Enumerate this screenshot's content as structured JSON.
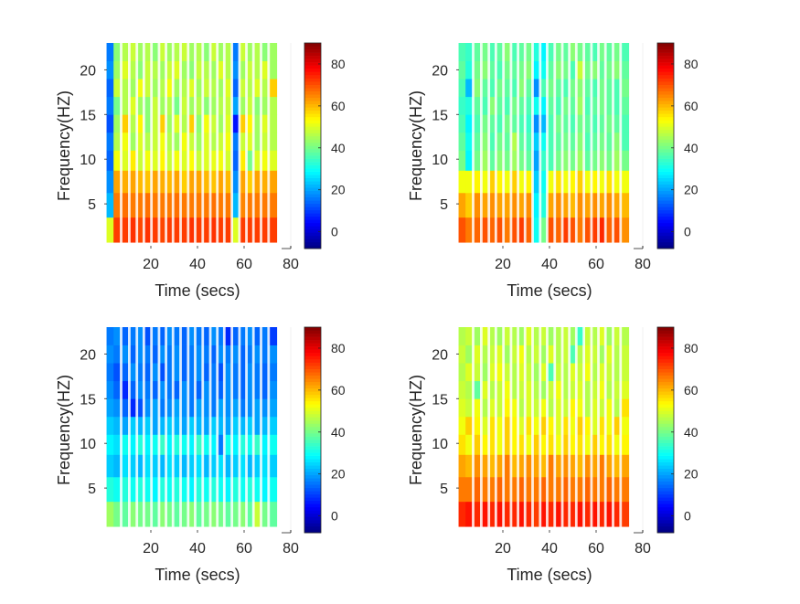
{
  "chart_data": [
    {
      "type": "heatmap",
      "panel": "top-left",
      "xlabel": "Time (secs)",
      "ylabel": "Frequency(HZ)",
      "xticks": [
        20,
        40,
        60,
        80
      ],
      "yticks": [
        5,
        10,
        15,
        20
      ],
      "xlim": [
        0,
        80
      ],
      "ylim": [
        0,
        23
      ],
      "colorbar": {
        "range": [
          -8,
          90
        ],
        "ticks": [
          0,
          20,
          40,
          60,
          80
        ],
        "colormap": "jet"
      },
      "time_columns": [
        2.5,
        5.5,
        9,
        12.5,
        15.5,
        18.5,
        22,
        25,
        28,
        31,
        34.5,
        37.5,
        40.5,
        44,
        47,
        50,
        53,
        56.5,
        59.5,
        62.5,
        65.5,
        69,
        72
      ],
      "frequency_rows": [
        2,
        5,
        7.5,
        10,
        12,
        14,
        16,
        18,
        20,
        22
      ],
      "values_db": [
        [
          50,
          72,
          72,
          73,
          71,
          73,
          72,
          71,
          72,
          72,
          72,
          73,
          72,
          72,
          73,
          72,
          72,
          50,
          72,
          72,
          72,
          72,
          72
        ],
        [
          22,
          66,
          67,
          66,
          66,
          67,
          66,
          66,
          66,
          67,
          66,
          66,
          66,
          66,
          67,
          66,
          66,
          22,
          65,
          66,
          66,
          66,
          66
        ],
        [
          18,
          62,
          61,
          62,
          60,
          59,
          62,
          61,
          60,
          62,
          58,
          62,
          62,
          60,
          59,
          62,
          60,
          18,
          62,
          58,
          62,
          61,
          62
        ],
        [
          14,
          52,
          50,
          55,
          48,
          52,
          50,
          54,
          48,
          52,
          50,
          53,
          48,
          50,
          51,
          52,
          49,
          14,
          55,
          40,
          50,
          52,
          50
        ],
        [
          16,
          46,
          52,
          44,
          50,
          46,
          48,
          52,
          46,
          44,
          52,
          48,
          44,
          50,
          46,
          48,
          52,
          16,
          48,
          50,
          44,
          48,
          46
        ],
        [
          12,
          44,
          58,
          46,
          54,
          42,
          48,
          58,
          44,
          50,
          46,
          58,
          42,
          52,
          48,
          44,
          50,
          6,
          58,
          54,
          44,
          50,
          46
        ],
        [
          16,
          40,
          46,
          50,
          44,
          42,
          48,
          44,
          46,
          40,
          48,
          44,
          46,
          42,
          44,
          46,
          48,
          20,
          44,
          48,
          42,
          44,
          46
        ],
        [
          14,
          48,
          46,
          44,
          52,
          48,
          44,
          46,
          52,
          44,
          46,
          50,
          44,
          48,
          46,
          44,
          50,
          14,
          48,
          46,
          50,
          46,
          58
        ],
        [
          18,
          44,
          50,
          46,
          42,
          48,
          46,
          44,
          48,
          50,
          44,
          42,
          48,
          46,
          44,
          50,
          46,
          18,
          44,
          48,
          46,
          50,
          44
        ],
        [
          16,
          42,
          46,
          48,
          44,
          46,
          42,
          48,
          44,
          46,
          48,
          44,
          46,
          42,
          48,
          44,
          46,
          16,
          48,
          44,
          46,
          42,
          44
        ]
      ]
    },
    {
      "type": "heatmap",
      "panel": "top-right",
      "xlabel": "Time (secs)",
      "ylabel": "Frequency(HZ)",
      "xticks": [
        20,
        40,
        60,
        80
      ],
      "yticks": [
        5,
        10,
        15,
        20
      ],
      "xlim": [
        0,
        80
      ],
      "ylim": [
        0,
        23
      ],
      "colorbar": {
        "range": [
          -8,
          90
        ],
        "ticks": [
          0,
          20,
          40,
          60,
          80
        ],
        "colormap": "jet"
      },
      "time_columns": [
        2.5,
        5.5,
        9,
        12.5,
        15.5,
        18.5,
        22,
        25,
        28,
        31,
        34.5,
        37.5,
        40.5,
        44,
        47,
        50,
        53,
        56.5,
        59.5,
        62.5,
        65.5,
        69,
        72
      ],
      "frequency_rows": [
        2,
        5,
        7.5,
        10,
        12,
        14,
        16,
        18,
        20,
        22
      ],
      "values_db": [
        [
          70,
          66,
          68,
          70,
          68,
          70,
          66,
          70,
          72,
          68,
          30,
          40,
          70,
          68,
          72,
          70,
          66,
          70,
          72,
          74,
          68,
          70,
          64
        ],
        [
          62,
          58,
          64,
          62,
          64,
          62,
          62,
          64,
          62,
          64,
          28,
          32,
          62,
          64,
          62,
          60,
          64,
          62,
          64,
          62,
          64,
          62,
          60
        ],
        [
          52,
          52,
          54,
          52,
          58,
          54,
          52,
          58,
          52,
          54,
          24,
          30,
          52,
          56,
          52,
          54,
          58,
          52,
          54,
          52,
          56,
          52,
          52
        ],
        [
          40,
          28,
          40,
          44,
          38,
          42,
          40,
          44,
          40,
          38,
          20,
          34,
          36,
          40,
          42,
          40,
          44,
          38,
          40,
          42,
          40,
          44,
          40
        ],
        [
          38,
          30,
          38,
          42,
          36,
          40,
          38,
          46,
          38,
          36,
          24,
          30,
          36,
          38,
          40,
          38,
          42,
          36,
          38,
          40,
          38,
          42,
          36
        ],
        [
          36,
          28,
          36,
          40,
          38,
          36,
          40,
          38,
          36,
          34,
          18,
          22,
          36,
          40,
          38,
          36,
          40,
          38,
          36,
          38,
          40,
          38,
          36
        ],
        [
          34,
          32,
          38,
          36,
          42,
          38,
          36,
          40,
          38,
          36,
          30,
          28,
          38,
          36,
          40,
          38,
          44,
          36,
          38,
          40,
          38,
          36,
          38
        ],
        [
          36,
          22,
          42,
          38,
          36,
          40,
          38,
          36,
          42,
          38,
          18,
          36,
          40,
          38,
          36,
          40,
          42,
          38,
          36,
          40,
          38,
          36,
          40
        ],
        [
          38,
          32,
          40,
          42,
          38,
          36,
          40,
          38,
          40,
          42,
          28,
          30,
          38,
          42,
          40,
          36,
          48,
          40,
          42,
          38,
          40,
          42,
          38
        ],
        [
          36,
          34,
          38,
          40,
          36,
          38,
          42,
          36,
          38,
          40,
          32,
          28,
          36,
          40,
          38,
          42,
          40,
          38,
          36,
          40,
          38,
          40,
          36
        ]
      ]
    },
    {
      "type": "heatmap",
      "panel": "bottom-left",
      "xlabel": "Time (secs)",
      "ylabel": "Frequency(HZ)",
      "xticks": [
        20,
        40,
        60,
        80
      ],
      "yticks": [
        5,
        10,
        15,
        20
      ],
      "xlim": [
        0,
        80
      ],
      "ylim": [
        0,
        23
      ],
      "colorbar": {
        "range": [
          -8,
          90
        ],
        "ticks": [
          0,
          20,
          40,
          60,
          80
        ],
        "colormap": "jet"
      },
      "time_columns": [
        2.5,
        5.5,
        9,
        12.5,
        15.5,
        18.5,
        22,
        25,
        28,
        31,
        34.5,
        37.5,
        40.5,
        44,
        47,
        50,
        53,
        56.5,
        59.5,
        62.5,
        65.5,
        69,
        72
      ],
      "frequency_rows": [
        2,
        5,
        7.5,
        10,
        12,
        14,
        16,
        18,
        20,
        22
      ],
      "values_db": [
        [
          44,
          40,
          38,
          42,
          40,
          40,
          38,
          42,
          40,
          38,
          40,
          42,
          38,
          40,
          42,
          40,
          38,
          40,
          42,
          38,
          48,
          40,
          38
        ],
        [
          32,
          30,
          32,
          30,
          32,
          30,
          28,
          32,
          30,
          32,
          30,
          28,
          32,
          30,
          32,
          30,
          28,
          32,
          30,
          32,
          30,
          28,
          30
        ],
        [
          24,
          22,
          26,
          24,
          22,
          26,
          24,
          22,
          26,
          24,
          22,
          24,
          26,
          22,
          24,
          26,
          22,
          24,
          26,
          22,
          24,
          26,
          24
        ],
        [
          28,
          26,
          30,
          28,
          32,
          28,
          30,
          34,
          28,
          32,
          30,
          28,
          34,
          30,
          28,
          16,
          30,
          28,
          32,
          30,
          34,
          28,
          30
        ],
        [
          24,
          22,
          20,
          24,
          22,
          24,
          20,
          22,
          24,
          22,
          20,
          24,
          22,
          20,
          24,
          22,
          20,
          24,
          22,
          24,
          20,
          22,
          24
        ],
        [
          20,
          18,
          14,
          8,
          12,
          18,
          20,
          16,
          18,
          20,
          18,
          16,
          20,
          18,
          16,
          20,
          18,
          20,
          16,
          18,
          20,
          18,
          20
        ],
        [
          18,
          14,
          8,
          14,
          18,
          16,
          14,
          18,
          16,
          14,
          18,
          16,
          14,
          18,
          16,
          14,
          18,
          16,
          14,
          18,
          16,
          14,
          18
        ],
        [
          16,
          12,
          14,
          18,
          16,
          14,
          18,
          12,
          16,
          18,
          14,
          16,
          18,
          14,
          16,
          12,
          18,
          16,
          14,
          18,
          16,
          14,
          16
        ],
        [
          18,
          16,
          18,
          14,
          18,
          16,
          14,
          18,
          16,
          18,
          14,
          16,
          18,
          16,
          14,
          18,
          16,
          18,
          14,
          16,
          18,
          16,
          18
        ],
        [
          16,
          18,
          14,
          16,
          18,
          12,
          16,
          14,
          18,
          16,
          14,
          18,
          16,
          14,
          18,
          16,
          8,
          14,
          16,
          18,
          14,
          16,
          10
        ]
      ]
    },
    {
      "type": "heatmap",
      "panel": "bottom-right",
      "xlabel": "Time (secs)",
      "ylabel": "Frequency(HZ)",
      "xticks": [
        20,
        40,
        60,
        80
      ],
      "yticks": [
        5,
        10,
        15,
        20
      ],
      "xlim": [
        0,
        80
      ],
      "ylim": [
        0,
        23
      ],
      "colorbar": {
        "range": [
          -8,
          90
        ],
        "ticks": [
          0,
          20,
          40,
          60,
          80
        ],
        "colormap": "jet"
      },
      "time_columns": [
        2.5,
        5.5,
        9,
        12.5,
        15.5,
        18.5,
        22,
        25,
        28,
        31,
        34.5,
        37.5,
        40.5,
        44,
        47,
        50,
        53,
        56.5,
        59.5,
        62.5,
        65.5,
        69,
        72
      ],
      "frequency_rows": [
        2,
        5,
        7.5,
        10,
        12,
        14,
        16,
        18,
        20,
        22
      ],
      "values_db": [
        [
          74,
          76,
          74,
          76,
          74,
          76,
          74,
          74,
          76,
          74,
          72,
          76,
          74,
          76,
          74,
          74,
          76,
          74,
          76,
          74,
          76,
          74,
          72
        ],
        [
          66,
          66,
          68,
          66,
          66,
          68,
          66,
          66,
          68,
          66,
          66,
          68,
          66,
          66,
          68,
          66,
          66,
          68,
          66,
          66,
          68,
          66,
          66
        ],
        [
          62,
          60,
          64,
          62,
          60,
          62,
          66,
          60,
          62,
          64,
          62,
          60,
          66,
          62,
          64,
          62,
          60,
          64,
          62,
          66,
          62,
          60,
          62
        ],
        [
          56,
          52,
          58,
          54,
          56,
          52,
          58,
          54,
          56,
          52,
          58,
          54,
          56,
          52,
          58,
          54,
          56,
          52,
          58,
          54,
          56,
          52,
          54
        ],
        [
          52,
          58,
          54,
          50,
          56,
          52,
          58,
          54,
          50,
          56,
          52,
          58,
          54,
          50,
          56,
          52,
          58,
          54,
          50,
          56,
          52,
          58,
          52
        ],
        [
          50,
          48,
          52,
          46,
          50,
          48,
          54,
          52,
          46,
          50,
          48,
          52,
          46,
          50,
          48,
          54,
          52,
          46,
          50,
          48,
          52,
          46,
          56
        ],
        [
          48,
          46,
          38,
          50,
          46,
          48,
          52,
          46,
          48,
          50,
          46,
          44,
          48,
          52,
          46,
          48,
          50,
          46,
          48,
          52,
          46,
          48,
          50
        ],
        [
          46,
          50,
          48,
          44,
          50,
          52,
          48,
          46,
          50,
          48,
          44,
          50,
          36,
          48,
          46,
          50,
          48,
          52,
          46,
          50,
          48,
          46,
          48
        ],
        [
          48,
          44,
          50,
          46,
          48,
          50,
          44,
          48,
          52,
          46,
          48,
          44,
          50,
          46,
          48,
          36,
          46,
          50,
          48,
          44,
          50,
          46,
          48
        ],
        [
          46,
          48,
          44,
          50,
          46,
          44,
          48,
          46,
          44,
          50,
          46,
          48,
          44,
          46,
          48,
          44,
          34,
          48,
          46,
          50,
          44,
          48,
          46
        ]
      ]
    }
  ]
}
